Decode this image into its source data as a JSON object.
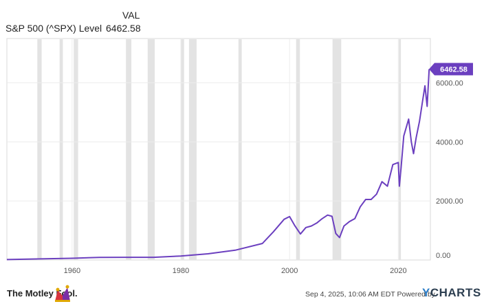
{
  "header": {
    "column_label": "VAL",
    "series_label": "S&P 500 (^SPX) Level",
    "series_value": "6462.58"
  },
  "footer": {
    "brand": "The Motley Fool.",
    "timestamp": "Sep 4, 2025, 10:06 AM EDT",
    "powered_by": "Powered by",
    "ycharts_y": "Y",
    "ycharts_rest": "CHARTS"
  },
  "colors": {
    "line": "#6b3fbf",
    "recession": "#e3e3e3",
    "grid": "#ececec",
    "badge": "#6b3fbf"
  },
  "chart_data": {
    "type": "line",
    "series": [
      {
        "name": "S&P 500 (^SPX) Level",
        "last_value_label": "6462.58",
        "x": [
          1948,
          1955,
          1960,
          1965,
          1970,
          1975,
          1980,
          1985,
          1990,
          1995,
          1997,
          1999,
          2000,
          2001,
          2002,
          2003,
          2004,
          2005,
          2006,
          2007,
          2007.8,
          2008.5,
          2009.2,
          2010,
          2011,
          2012,
          2013,
          2014,
          2015,
          2016,
          2017,
          2018,
          2019,
          2020.0,
          2020.2,
          2020.5,
          2021,
          2021.9,
          2022.4,
          2022.8,
          2023.3,
          2023.9,
          2024.4,
          2024.9,
          2025.3,
          2025.67
        ],
        "y": [
          15,
          40,
          58,
          88,
          92,
          90,
          135,
          210,
          330,
          560,
          950,
          1380,
          1470,
          1150,
          880,
          1100,
          1150,
          1250,
          1400,
          1520,
          1480,
          900,
          760,
          1150,
          1300,
          1400,
          1800,
          2050,
          2050,
          2230,
          2650,
          2500,
          3230,
          3300,
          2500,
          3100,
          4200,
          4770,
          4000,
          3600,
          4150,
          4700,
          5300,
          5900,
          5200,
          6462.58
        ]
      }
    ],
    "xlim": [
      1948,
      2025.9
    ],
    "ylim": [
      0,
      7500
    ],
    "x_ticks": [
      1960,
      1980,
      2000,
      2020
    ],
    "y_ticks": [
      0,
      2000,
      4000,
      6000
    ],
    "x_tick_labels": [
      "1960",
      "1980",
      "2000",
      "2020"
    ],
    "y_tick_labels": [
      "0.00",
      "2000.00",
      "4000.00",
      "6000.00"
    ],
    "recessions": [
      [
        1953.6,
        1954.4
      ],
      [
        1957.7,
        1958.3
      ],
      [
        1960.3,
        1961.1
      ],
      [
        1969.9,
        1970.9
      ],
      [
        1973.9,
        1975.2
      ],
      [
        1980.0,
        1980.6
      ],
      [
        1981.5,
        1982.9
      ],
      [
        1990.6,
        1991.2
      ],
      [
        2001.2,
        2001.9
      ],
      [
        2007.9,
        2009.5
      ],
      [
        2020.1,
        2020.4
      ]
    ],
    "grid": true
  }
}
